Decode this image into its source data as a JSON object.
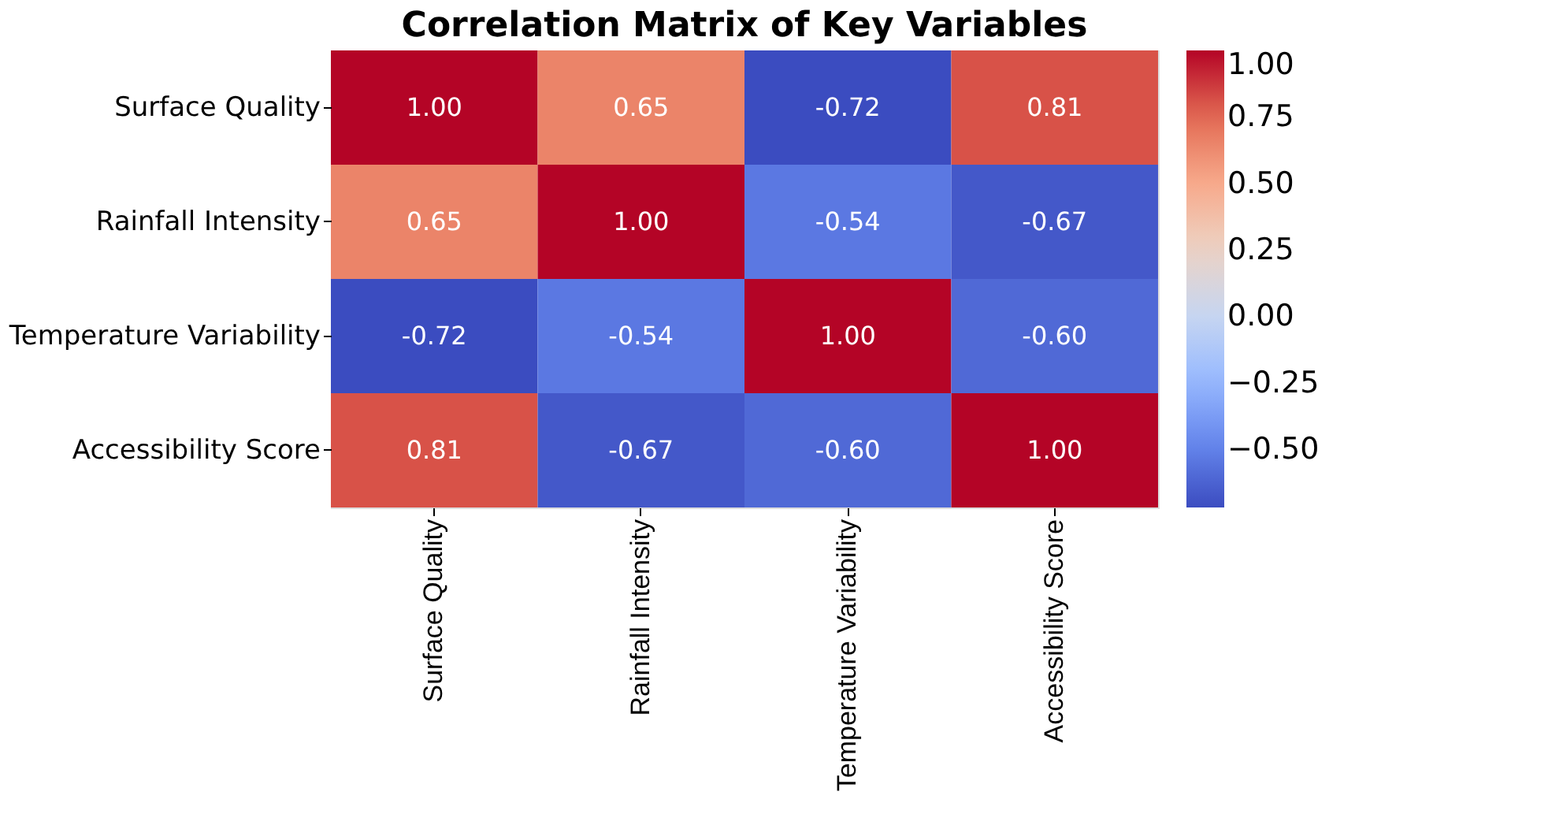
{
  "chart_data": {
    "type": "heatmap",
    "title": "Correlation Matrix of Key Variables",
    "categories": [
      "Surface Quality",
      "Rainfall Intensity",
      "Temperature Variability",
      "Accessibility Score"
    ],
    "y_categories": [
      "Surface Quality",
      "Rainfall Intensity",
      "Temperature Variability",
      "Accessibility Score"
    ],
    "cells": [
      [
        1.0,
        0.65,
        -0.72,
        0.81
      ],
      [
        0.65,
        1.0,
        -0.54,
        -0.67
      ],
      [
        -0.72,
        -0.54,
        1.0,
        -0.6
      ],
      [
        0.81,
        -0.67,
        -0.6,
        1.0
      ]
    ],
    "cell_labels": [
      [
        "1.00",
        "0.65",
        "-0.72",
        "0.81"
      ],
      [
        "0.65",
        "1.00",
        "-0.54",
        "-0.67"
      ],
      [
        "-0.72",
        "-0.54",
        "1.00",
        "-0.60"
      ],
      [
        "0.81",
        "-0.67",
        "-0.60",
        "1.00"
      ]
    ],
    "clim": [
      -0.72,
      1.0
    ],
    "cticks": [
      {
        "value": -0.5,
        "label": "−0.50"
      },
      {
        "value": -0.25,
        "label": "−0.25"
      },
      {
        "value": 0,
        "label": "0.00"
      },
      {
        "value": 0.25,
        "label": "0.25"
      },
      {
        "value": 0.5,
        "label": "0.50"
      },
      {
        "value": 0.75,
        "label": "0.75"
      },
      {
        "value": 1.0,
        "label": "1.00"
      }
    ]
  }
}
